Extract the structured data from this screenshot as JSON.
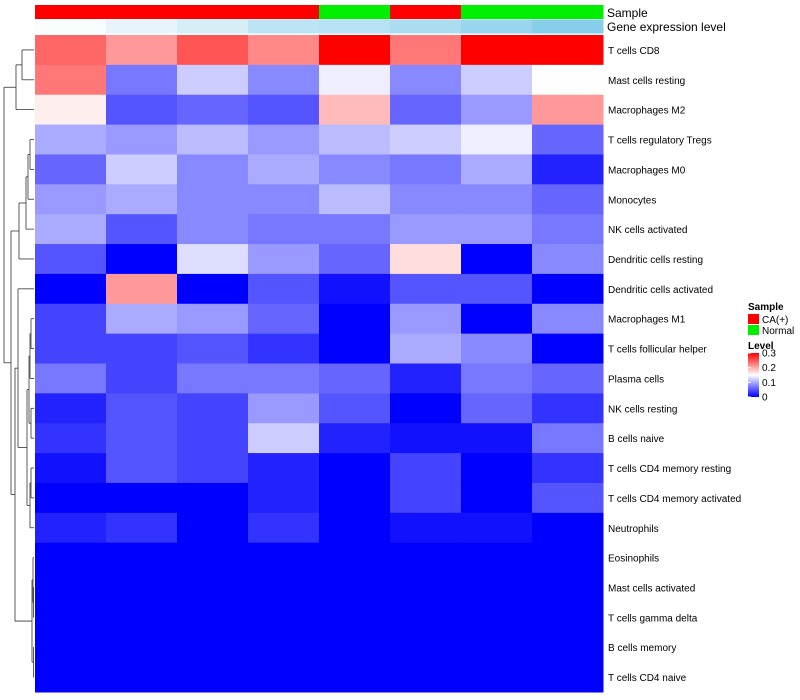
{
  "chart_data": {
    "type": "heatmap",
    "annotation_labels": [
      "Sample",
      "Gene expression level"
    ],
    "sample_groups": [
      "CA(+)",
      "CA(+)",
      "CA(+)",
      "CA(+)",
      "Normal",
      "CA(+)",
      "Normal",
      "Normal"
    ],
    "expression_annotation": [
      0.04,
      0.2,
      0.35,
      0.55,
      0.6,
      0.7,
      0.85,
      1.0
    ],
    "rows": [
      "T cells CD8",
      "Mast cells resting",
      "Macrophages M2",
      "T cells regulatory  Tregs",
      "Macrophages M0",
      "Monocytes",
      "NK cells activated",
      "Dendritic cells resting",
      "Dendritic cells activated",
      "Macrophages M1",
      "T cells follicular helper",
      "Plasma cells",
      "NK cells resting",
      "B cells naive",
      "T cells CD4 memory resting",
      "T cells CD4 memory activated",
      "Neutrophils",
      "Eosinophils",
      "Mast cells activated",
      "T cells gamma delta",
      "B cells memory",
      "T cells CD4 naive"
    ],
    "values": [
      [
        0.24,
        0.21,
        0.25,
        0.22,
        0.3,
        0.23,
        0.3,
        0.3
      ],
      [
        0.23,
        0.07,
        0.12,
        0.08,
        0.14,
        0.08,
        0.12,
        0.15
      ],
      [
        0.16,
        0.05,
        0.06,
        0.05,
        0.19,
        0.06,
        0.09,
        0.21
      ],
      [
        0.1,
        0.09,
        0.11,
        0.09,
        0.11,
        0.12,
        0.14,
        0.06
      ],
      [
        0.06,
        0.12,
        0.08,
        0.1,
        0.08,
        0.07,
        0.1,
        0.02
      ],
      [
        0.09,
        0.1,
        0.08,
        0.08,
        0.11,
        0.08,
        0.08,
        0.06
      ],
      [
        0.1,
        0.05,
        0.08,
        0.07,
        0.07,
        0.09,
        0.09,
        0.07
      ],
      [
        0.05,
        0.0,
        0.13,
        0.09,
        0.06,
        0.17,
        0.0,
        0.08
      ],
      [
        0.0,
        0.21,
        0.0,
        0.05,
        0.01,
        0.05,
        0.05,
        0.0
      ],
      [
        0.04,
        0.1,
        0.09,
        0.06,
        0.0,
        0.09,
        0.0,
        0.08
      ],
      [
        0.04,
        0.04,
        0.05,
        0.03,
        0.0,
        0.1,
        0.08,
        0.0
      ],
      [
        0.07,
        0.04,
        0.07,
        0.07,
        0.06,
        0.02,
        0.07,
        0.06
      ],
      [
        0.02,
        0.05,
        0.04,
        0.09,
        0.05,
        0.0,
        0.06,
        0.03
      ],
      [
        0.03,
        0.05,
        0.04,
        0.12,
        0.02,
        0.01,
        0.01,
        0.07
      ],
      [
        0.01,
        0.05,
        0.04,
        0.02,
        0.0,
        0.04,
        0.0,
        0.03
      ],
      [
        0.0,
        0.0,
        0.0,
        0.02,
        0.0,
        0.04,
        0.0,
        0.05
      ],
      [
        0.02,
        0.03,
        0.0,
        0.03,
        0.0,
        0.01,
        0.01,
        0.0
      ],
      [
        0.0,
        0.0,
        0.0,
        0.0,
        0.0,
        0.0,
        0.0,
        0.0
      ],
      [
        0.0,
        0.0,
        0.0,
        0.0,
        0.0,
        0.0,
        0.0,
        0.0
      ],
      [
        0.0,
        0.0,
        0.0,
        0.0,
        0.0,
        0.0,
        0.0,
        0.0
      ],
      [
        0.0,
        0.0,
        0.0,
        0.0,
        0.0,
        0.0,
        0.0,
        0.0
      ],
      [
        0.0,
        0.0,
        0.0,
        0.0,
        0.0,
        0.0,
        0.0,
        0.0
      ]
    ],
    "value_range": [
      0,
      0.3
    ],
    "colors": {
      "low": "#0000ff",
      "mid": "#ffffff",
      "high": "#ff0000",
      "annotation_low": "#ffffff",
      "annotation_high": "#87ceeb"
    },
    "legend_sample": {
      "title": "Sample",
      "entries": [
        {
          "label": "CA(+)",
          "color": "#ff0000"
        },
        {
          "label": "Normal",
          "color": "#00ee00"
        }
      ]
    },
    "legend_level": {
      "title": "Level",
      "ticks": [
        "0.3",
        "0.2",
        "0.1",
        "0"
      ],
      "tick_values": [
        0.3,
        0.2,
        0.1,
        0
      ]
    }
  }
}
